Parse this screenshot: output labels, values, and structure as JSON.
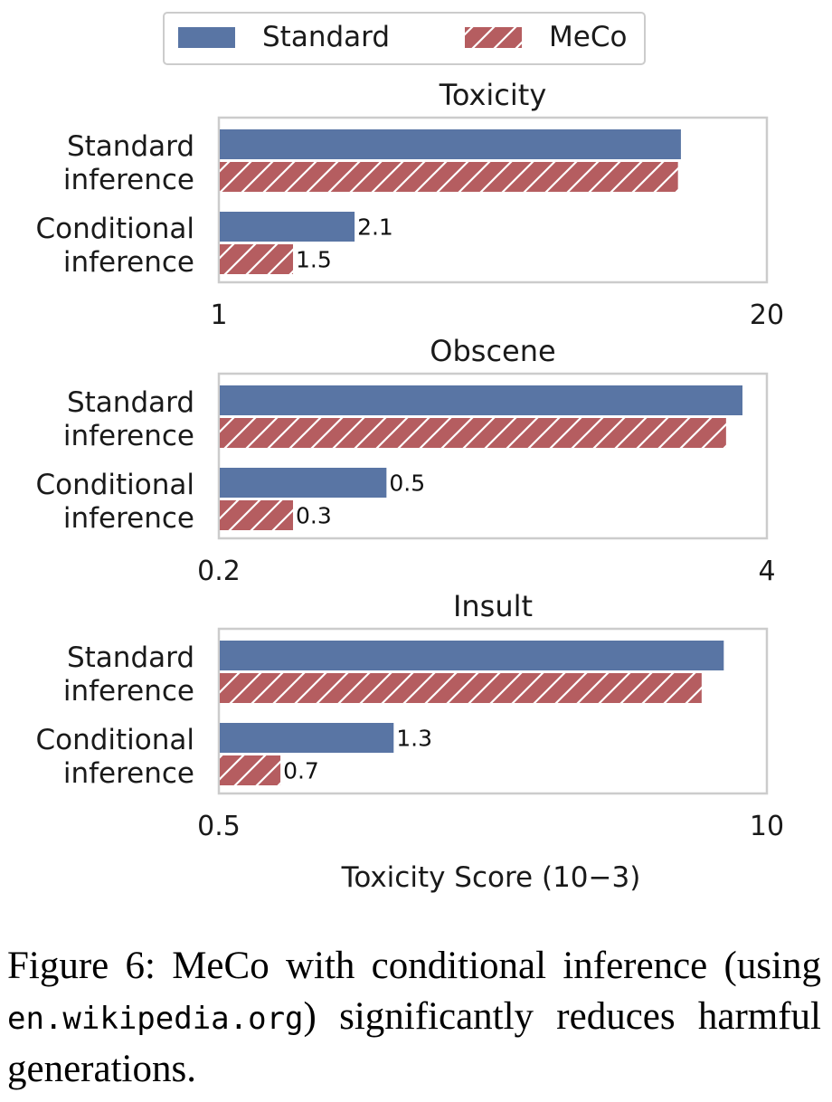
{
  "legend": {
    "placement": "top-center",
    "items": [
      {
        "label": "Standard",
        "color": "#5975a4",
        "pattern": "solid"
      },
      {
        "label": "MeCo",
        "color": "#b55d60",
        "pattern": "hatch"
      }
    ]
  },
  "chart_data": [
    {
      "type": "bar",
      "orientation": "horizontal",
      "title": "Toxicity",
      "categories": [
        "Standard\ninference",
        "Conditional\ninference"
      ],
      "series": [
        {
          "name": "Standard",
          "values": [
            12.5,
            2.1
          ]
        },
        {
          "name": "MeCo",
          "values": [
            12.3,
            1.5
          ]
        }
      ],
      "data_labels": [
        [
          "",
          ""
        ],
        [
          "2.1",
          "1.5"
        ]
      ],
      "xlim": [
        1,
        20
      ],
      "xscale": "log",
      "tick_labels": [
        "1",
        "20"
      ],
      "grid": false
    },
    {
      "type": "bar",
      "orientation": "horizontal",
      "title": "Obscene",
      "categories": [
        "Standard\ninference",
        "Conditional\ninference"
      ],
      "series": [
        {
          "name": "Standard",
          "values": [
            3.5,
            0.5
          ]
        },
        {
          "name": "MeCo",
          "values": [
            3.2,
            0.3
          ]
        }
      ],
      "data_labels": [
        [
          "",
          ""
        ],
        [
          "0.5",
          "0.3"
        ]
      ],
      "xlim": [
        0.2,
        4
      ],
      "xscale": "log",
      "tick_labels": [
        "0.2",
        "4"
      ],
      "grid": false
    },
    {
      "type": "bar",
      "orientation": "horizontal",
      "title": "Insult",
      "categories": [
        "Standard\ninference",
        "Conditional\ninference"
      ],
      "series": [
        {
          "name": "Standard",
          "values": [
            7.9,
            1.3
          ]
        },
        {
          "name": "MeCo",
          "values": [
            7.0,
            0.7
          ]
        }
      ],
      "data_labels": [
        [
          "",
          ""
        ],
        [
          "1.3",
          "0.7"
        ]
      ],
      "xlim": [
        0.5,
        10
      ],
      "xscale": "log",
      "tick_labels": [
        "0.5",
        "10"
      ],
      "xlabel": "Toxicity Score (10−3)",
      "grid": false
    }
  ],
  "caption": {
    "label": "Figure 6:",
    "text_before": "MeCo with conditional inference (using",
    "code": "en.wikipedia.org",
    "text_after": ") significantly reduces harmful generations."
  }
}
